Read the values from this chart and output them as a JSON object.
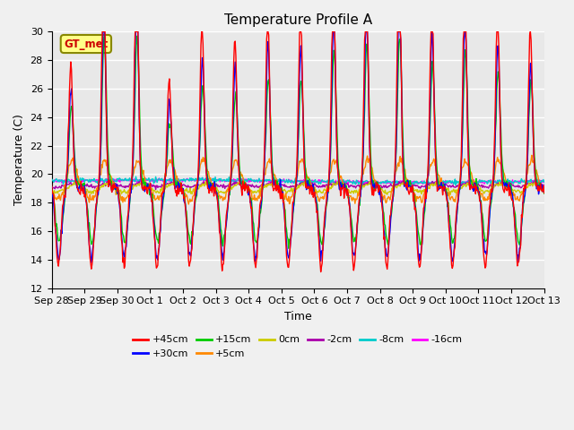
{
  "title": "Temperature Profile A",
  "xlabel": "Time",
  "ylabel": "Temperature (C)",
  "ylim": [
    12,
    30
  ],
  "background_color": "#f0f0f0",
  "plot_bg_color": "#e8e8e8",
  "grid_color": "#ffffff",
  "tick_labels": [
    "Sep 28",
    "Sep 29",
    "Sep 30",
    "Oct 1",
    "Oct 2",
    "Oct 3",
    "Oct 4",
    "Oct 5",
    "Oct 6",
    "Oct 7",
    "Oct 8",
    "Oct 9",
    "Oct 10",
    "Oct 11",
    "Oct 12",
    "Oct 13"
  ],
  "series_colors": {
    "+45cm": "#ff0000",
    "+30cm": "#0000ff",
    "+15cm": "#00cc00",
    "+5cm": "#ff8800",
    "0cm": "#cccc00",
    "-2cm": "#aa00aa",
    "-8cm": "#00cccc",
    "-16cm": "#ff00ff"
  },
  "gt_met_label": "GT_met",
  "gt_met_text_color": "#cc0000",
  "gt_met_bg_color": "#ffff88",
  "gt_met_border_color": "#888800",
  "n_days": 15,
  "n_per_day": 48
}
